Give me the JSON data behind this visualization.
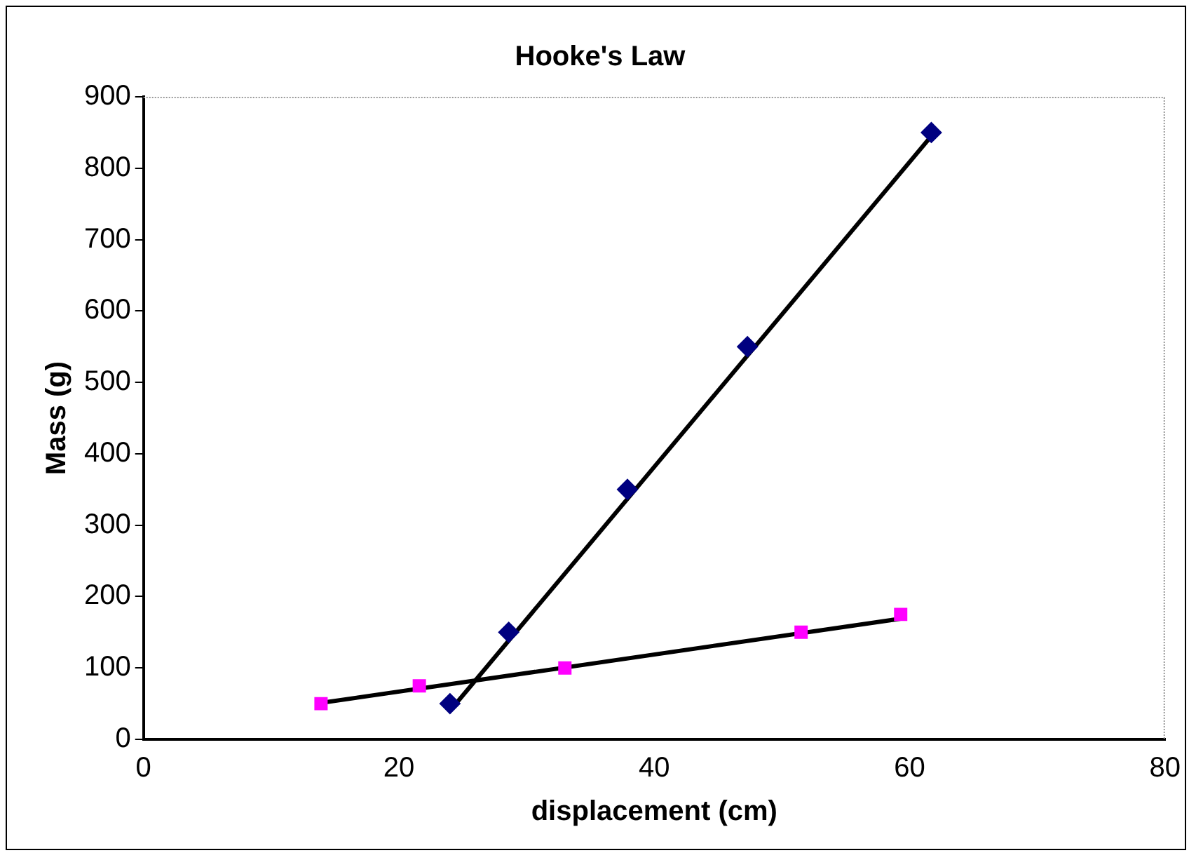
{
  "chart_data": {
    "type": "scatter",
    "title": "Hooke's Law",
    "xlabel": "displacement (cm)",
    "ylabel": "Mass (g)",
    "xlim": [
      0,
      80
    ],
    "xticks": [
      0,
      20,
      40,
      60,
      80
    ],
    "ylim": [
      0,
      900
    ],
    "yticks": [
      0,
      100,
      200,
      300,
      400,
      500,
      600,
      700,
      800,
      900
    ],
    "grid": false,
    "legend": false,
    "series": [
      {
        "color": "#000080",
        "marker": "diamond",
        "x": [
          24,
          28.6,
          37.9,
          47.3,
          61.7
        ],
        "values": [
          50,
          150,
          350,
          550,
          850
        ]
      },
      {
        "color": "#ff00ff",
        "marker": "square",
        "x": [
          13.9,
          21.6,
          33,
          51.5,
          59.3
        ],
        "values": [
          50,
          75,
          100,
          150,
          175
        ]
      },
      {
        "type": "line",
        "color": "#000000",
        "marker": "none",
        "x": [
          24,
          61.7
        ],
        "values": [
          40,
          845
        ]
      },
      {
        "type": "line",
        "color": "#000000",
        "marker": "none",
        "x": [
          13.9,
          59.3
        ],
        "values": [
          51,
          169
        ]
      }
    ]
  }
}
